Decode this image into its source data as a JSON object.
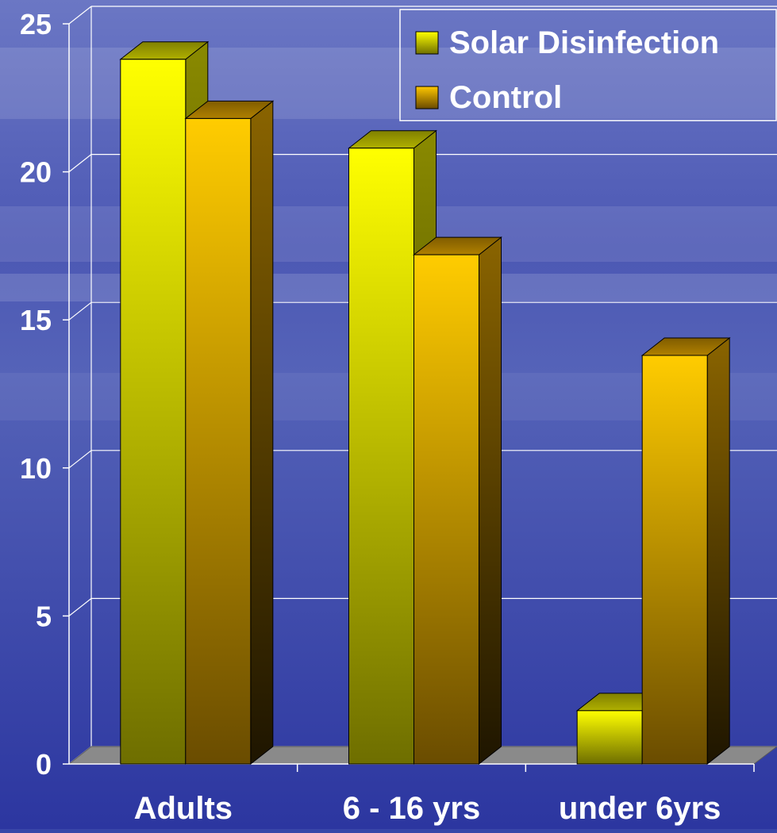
{
  "chart_data": {
    "type": "bar",
    "title": "",
    "xlabel": "",
    "ylabel": "",
    "categories": [
      "Adults",
      "6 - 16 yrs",
      "under 6yrs"
    ],
    "series": [
      {
        "name": "Solar Disinfection",
        "values": [
          23.8,
          20.8,
          1.8
        ]
      },
      {
        "name": "Control",
        "values": [
          21.8,
          17.2,
          13.8
        ]
      }
    ],
    "ylim": [
      0,
      25
    ],
    "yticks": [
      "0",
      "5",
      "10",
      "15",
      "20",
      "25"
    ],
    "grid": true,
    "legend_position": "top-right",
    "three_d": true
  },
  "colors": {
    "background_top": "#5a66b8",
    "background_bottom": "#2e38a0",
    "series": [
      "#ffff00",
      "#ffc800"
    ],
    "series_dark": [
      "#707000",
      "#6a4a00"
    ],
    "grid": "#ffffff",
    "floor": "#8a8a8a"
  }
}
